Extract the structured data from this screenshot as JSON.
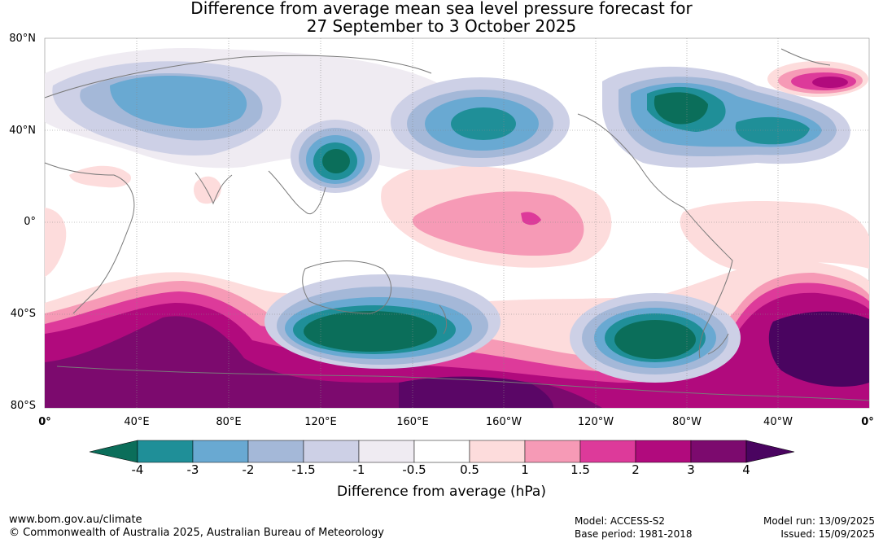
{
  "title": {
    "line1": "Difference from average mean sea level pressure forecast for",
    "line2": "27 September to 3 October 2025"
  },
  "axes": {
    "lat_labels": [
      "80°N",
      "40°N",
      "0°",
      "40°S",
      "80°S"
    ],
    "lon_labels": [
      "0°",
      "40°E",
      "80°E",
      "120°E",
      "160°E",
      "160°W",
      "120°W",
      "80°W",
      "40°W",
      "0°"
    ]
  },
  "colorbar": {
    "title": "Difference from average (hPa)",
    "ticks": [
      "-4",
      "-3",
      "-2",
      "-1.5",
      "-1",
      "-0.5",
      "0.5",
      "1",
      "1.5",
      "2",
      "3",
      "4"
    ],
    "colors": [
      "#0b6e5a",
      "#1f8f98",
      "#69a9d2",
      "#a4b8d8",
      "#cdd0e6",
      "#efebf2",
      "#ffffff",
      "#fddcdc",
      "#f69ab6",
      "#dd3a9a",
      "#b10a7d",
      "#7c0a6e",
      "#4a0460"
    ]
  },
  "footer": {
    "url": "www.bom.gov.au/climate",
    "copyright": "© Commonwealth of Australia 2025, Australian Bureau of Meteorology",
    "model": "Model: ACCESS-S2",
    "base_period": "Base period: 1981-2018",
    "model_run": "Model run: 13/09/2025",
    "issued": "Issued: 15/09/2025"
  }
}
